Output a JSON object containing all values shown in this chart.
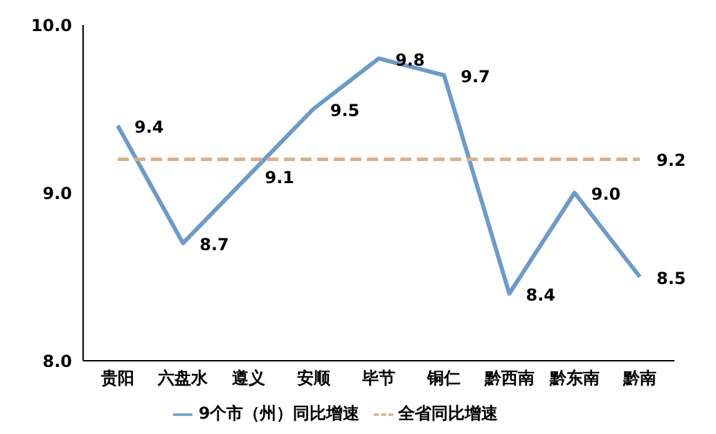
{
  "chart_data": {
    "type": "line",
    "categories": [
      "贵阳",
      "六盘水",
      "遵义",
      "安顺",
      "毕节",
      "铜仁",
      "黔西南",
      "黔东南",
      "黔南"
    ],
    "series": [
      {
        "name": "9个市（州）同比增速",
        "color": "#6a9bcc",
        "line_style": "solid",
        "values": [
          9.4,
          8.7,
          9.1,
          9.5,
          9.8,
          9.7,
          8.4,
          9.0,
          8.5
        ],
        "value_labels": [
          "9.4",
          "8.7",
          "9.1",
          "9.5",
          "9.8",
          "9.7",
          "8.4",
          "9.0",
          "8.5"
        ]
      },
      {
        "name": "全省同比增速",
        "color": "#e0ae86",
        "line_style": "dashed",
        "values": [
          9.2,
          9.2,
          9.2,
          9.2,
          9.2,
          9.2,
          9.2,
          9.2,
          9.2
        ],
        "value_labels": [
          null,
          null,
          null,
          null,
          null,
          null,
          null,
          null,
          "9.2"
        ]
      }
    ],
    "ylim": [
      8.0,
      10.0
    ],
    "yticks": [
      {
        "value": 8.0,
        "label": "8.0"
      },
      {
        "value": 9.0,
        "label": "9.0"
      },
      {
        "value": 10.0,
        "label": "10.0"
      }
    ],
    "grid": false,
    "legend": "bottom",
    "marker": "none"
  }
}
